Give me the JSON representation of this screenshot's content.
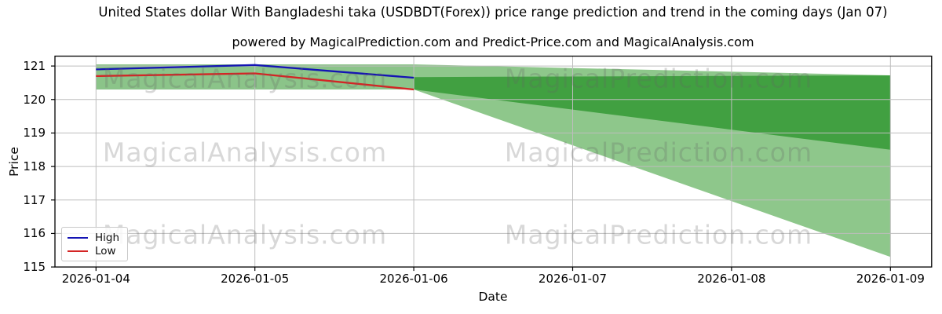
{
  "chart_data": {
    "type": "line",
    "title": "United States dollar With Bangladeshi taka (USDBDT(Forex)) price range prediction and trend in the coming days (Jan 07)",
    "subtitle": "powered by MagicalPrediction.com and Predict-Price.com and MagicalAnalysis.com",
    "xlabel": "Date",
    "ylabel": "Price",
    "x_categories": [
      "2026-01-04",
      "2026-01-05",
      "2026-01-06",
      "2026-01-07",
      "2026-01-08",
      "2026-01-09"
    ],
    "yticks": [
      115,
      116,
      117,
      118,
      119,
      120,
      121
    ],
    "ylim": [
      115,
      121.3
    ],
    "grid": true,
    "series": [
      {
        "name": "High",
        "color": "#1414b4",
        "x_index": [
          0,
          1,
          2
        ],
        "values": [
          120.9,
          121.03,
          120.65
        ]
      },
      {
        "name": "Low",
        "color": "#d42525",
        "x_index": [
          0,
          1,
          2
        ],
        "values": [
          120.7,
          120.78,
          120.3
        ]
      }
    ],
    "bands": [
      {
        "name": "historical-range",
        "color": "#8bc489",
        "points": [
          [
            0,
            121.05
          ],
          [
            2,
            121.05
          ],
          [
            2,
            120.3
          ],
          [
            0,
            120.3
          ]
        ]
      },
      {
        "name": "forecast-wide-range",
        "color": "#8ec78b",
        "points": [
          [
            2,
            121.05
          ],
          [
            5,
            120.72
          ],
          [
            5,
            115.3
          ],
          [
            2,
            120.3
          ]
        ]
      },
      {
        "name": "forecast-likely-range",
        "color": "#41a041",
        "points": [
          [
            2,
            120.67
          ],
          [
            5,
            120.72
          ],
          [
            5,
            118.5
          ],
          [
            2,
            120.3
          ]
        ]
      }
    ],
    "legend": {
      "position": "lower left",
      "items": [
        {
          "label": "High",
          "color": "#1414b4"
        },
        {
          "label": "Low",
          "color": "#d42525"
        }
      ]
    },
    "watermarks": [
      "MagicalAnalysis.com",
      "MagicalPrediction.com"
    ],
    "colors": {
      "background": "#ffffff",
      "gridline": "#bdbdbd",
      "spine": "#000000",
      "band_light_green": "#8ec78b",
      "band_dark_green": "#41a041"
    }
  }
}
